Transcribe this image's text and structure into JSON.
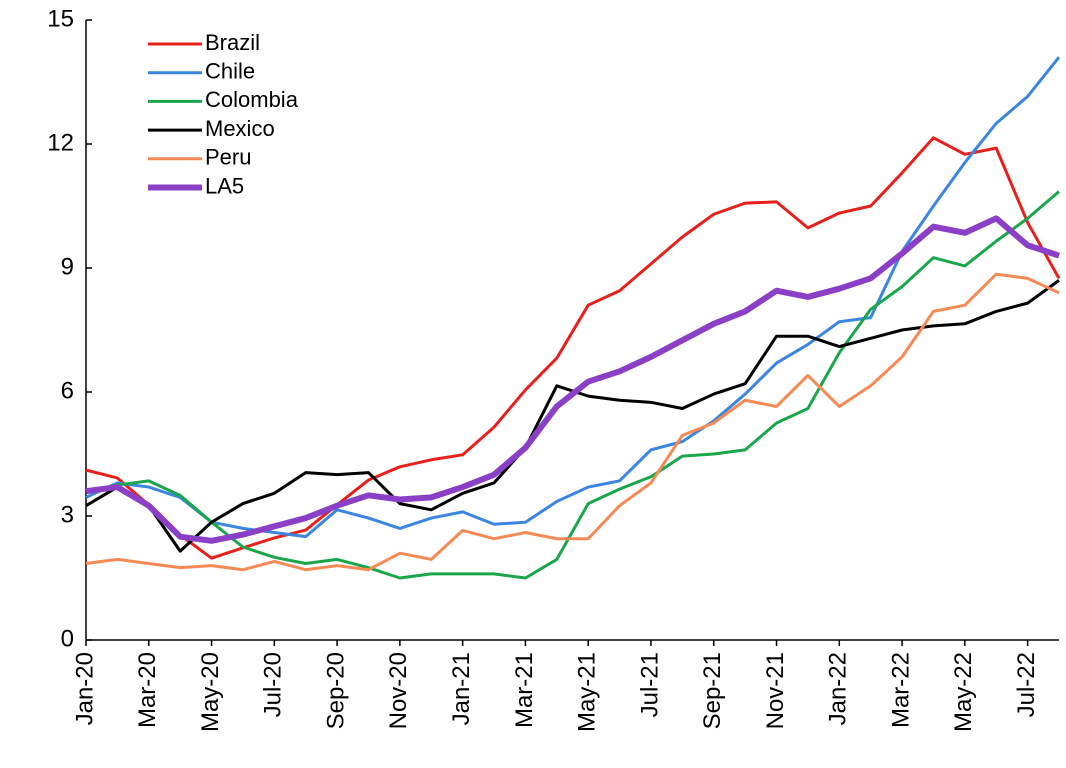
{
  "chart_data": {
    "type": "line",
    "categories": [
      "Jan-20",
      null,
      "Mar-20",
      null,
      "May-20",
      null,
      "Jul-20",
      null,
      "Sep-20",
      null,
      "Nov-20",
      null,
      "Jan-21",
      null,
      "Mar-21",
      null,
      "May-21",
      null,
      "Jul-21",
      null,
      "Sep-21",
      null,
      "Nov-21",
      null,
      "Jan-22",
      null,
      "Mar-22",
      null,
      "May-22",
      null,
      "Jul-22",
      null
    ],
    "series": [
      {
        "name": "Brazil",
        "color": "#e8201c",
        "width": 3,
        "values": [
          4.11,
          3.92,
          3.27,
          2.54,
          1.98,
          2.23,
          2.47,
          2.66,
          3.27,
          3.87,
          4.19,
          4.36,
          4.48,
          5.15,
          6.05,
          6.82,
          8.1,
          8.45,
          9.1,
          9.75,
          10.3,
          10.57,
          10.6,
          9.97,
          10.33,
          10.5,
          11.3,
          12.15,
          11.75,
          11.9,
          10.1,
          8.75
        ]
      },
      {
        "name": "Chile",
        "color": "#3b86e0",
        "width": 3,
        "values": [
          3.45,
          3.8,
          3.7,
          3.45,
          2.85,
          2.7,
          2.6,
          2.5,
          3.15,
          2.95,
          2.7,
          2.95,
          3.1,
          2.8,
          2.85,
          3.35,
          3.7,
          3.85,
          4.6,
          4.8,
          5.3,
          5.95,
          6.7,
          7.15,
          7.7,
          7.8,
          9.4,
          10.5,
          11.55,
          12.5,
          13.15,
          14.1
        ]
      },
      {
        "name": "Colombia",
        "color": "#1aa64a",
        "width": 3,
        "values": [
          3.6,
          3.75,
          3.85,
          3.5,
          2.85,
          2.25,
          2.0,
          1.85,
          1.95,
          1.75,
          1.5,
          1.6,
          1.6,
          1.6,
          1.5,
          1.95,
          3.3,
          3.65,
          3.95,
          4.45,
          4.5,
          4.6,
          5.25,
          5.6,
          6.95,
          8.0,
          8.55,
          9.25,
          9.05,
          9.65,
          10.2,
          10.85
        ]
      },
      {
        "name": "Mexico",
        "color": "#000000",
        "width": 3,
        "values": [
          3.25,
          3.7,
          3.25,
          2.15,
          2.85,
          3.3,
          3.55,
          4.05,
          4.0,
          4.05,
          3.3,
          3.15,
          3.55,
          3.8,
          4.65,
          6.15,
          5.9,
          5.8,
          5.75,
          5.6,
          5.95,
          6.2,
          7.35,
          7.35,
          7.1,
          7.3,
          7.5,
          7.6,
          7.65,
          7.95,
          8.15,
          8.7
        ]
      },
      {
        "name": "Peru",
        "color": "#f58a55",
        "width": 3,
        "values": [
          1.85,
          1.95,
          1.85,
          1.75,
          1.8,
          1.7,
          1.9,
          1.7,
          1.8,
          1.7,
          2.1,
          1.95,
          2.65,
          2.45,
          2.6,
          2.45,
          2.45,
          3.25,
          3.8,
          4.95,
          5.25,
          5.8,
          5.65,
          6.4,
          5.65,
          6.15,
          6.85,
          7.95,
          8.1,
          8.85,
          8.75,
          8.4
        ]
      },
      {
        "name": "LA5",
        "color": "#8a3fc6",
        "width": 6,
        "values": [
          3.6,
          3.7,
          3.25,
          2.5,
          2.4,
          2.55,
          2.75,
          2.95,
          3.25,
          3.5,
          3.4,
          3.45,
          3.7,
          4.0,
          4.65,
          5.65,
          6.25,
          6.5,
          6.85,
          7.25,
          7.65,
          7.95,
          8.45,
          8.3,
          8.5,
          8.75,
          9.35,
          10.0,
          9.85,
          10.2,
          9.55,
          9.3
        ]
      }
    ],
    "ylim": [
      0,
      15
    ],
    "yticks": [
      0,
      3,
      6,
      9,
      12,
      15
    ]
  }
}
